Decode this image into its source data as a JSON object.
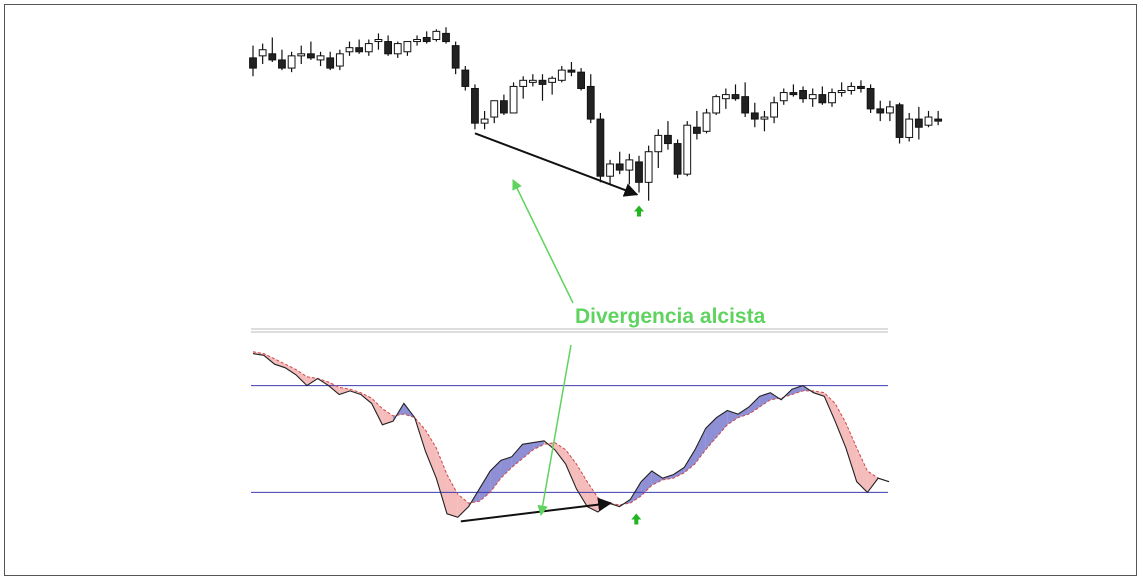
{
  "annotation": {
    "label": "Divergencia alcista"
  },
  "colors": {
    "bullish": "#ffffff",
    "bearish": "#222222",
    "wick": "#111111",
    "annotation_text": "#5fd35f",
    "annotation_arrow": "#5fd35f",
    "signal_arrow": "#22b422",
    "divergence_line": "#111111",
    "ref_line": "#3b3bb0",
    "oscillator_up_fill": "#6a6ac8",
    "oscillator_down_fill": "#f2a6a6",
    "oscillator_line": "#222222",
    "signal_line": "#d04848"
  },
  "chart_data": [
    {
      "type": "candlestick",
      "title": "",
      "grid": false,
      "ylim": [
        0,
        100
      ],
      "candles": [
        {
          "o": 78,
          "h": 84,
          "l": 69,
          "c": 73
        },
        {
          "o": 79,
          "h": 85,
          "l": 75,
          "c": 82
        },
        {
          "o": 80,
          "h": 88,
          "l": 76,
          "c": 77
        },
        {
          "o": 77,
          "h": 82,
          "l": 72,
          "c": 73
        },
        {
          "o": 73,
          "h": 81,
          "l": 71,
          "c": 79
        },
        {
          "o": 79,
          "h": 84,
          "l": 75,
          "c": 80
        },
        {
          "o": 80,
          "h": 86,
          "l": 77,
          "c": 78
        },
        {
          "o": 77,
          "h": 81,
          "l": 74,
          "c": 79
        },
        {
          "o": 78,
          "h": 81,
          "l": 72,
          "c": 73
        },
        {
          "o": 74,
          "h": 82,
          "l": 72,
          "c": 80
        },
        {
          "o": 81,
          "h": 86,
          "l": 79,
          "c": 83
        },
        {
          "o": 83,
          "h": 87,
          "l": 80,
          "c": 81
        },
        {
          "o": 81,
          "h": 87,
          "l": 79,
          "c": 85
        },
        {
          "o": 86,
          "h": 90,
          "l": 82,
          "c": 87
        },
        {
          "o": 86,
          "h": 89,
          "l": 79,
          "c": 80
        },
        {
          "o": 80,
          "h": 86,
          "l": 78,
          "c": 85
        },
        {
          "o": 81,
          "h": 86,
          "l": 79,
          "c": 86
        },
        {
          "o": 86,
          "h": 89,
          "l": 84,
          "c": 87
        },
        {
          "o": 88,
          "h": 91,
          "l": 85,
          "c": 86
        },
        {
          "o": 87,
          "h": 92,
          "l": 86,
          "c": 91
        },
        {
          "o": 90,
          "h": 93,
          "l": 85,
          "c": 86
        },
        {
          "o": 84,
          "h": 86,
          "l": 70,
          "c": 73
        },
        {
          "o": 72,
          "h": 74,
          "l": 62,
          "c": 64
        },
        {
          "o": 63,
          "h": 65,
          "l": 43,
          "c": 46
        },
        {
          "o": 46,
          "h": 52,
          "l": 43,
          "c": 48
        },
        {
          "o": 49,
          "h": 57,
          "l": 46,
          "c": 57
        },
        {
          "o": 57,
          "h": 60,
          "l": 50,
          "c": 51
        },
        {
          "o": 51,
          "h": 66,
          "l": 51,
          "c": 64
        },
        {
          "o": 64,
          "h": 69,
          "l": 58,
          "c": 67
        },
        {
          "o": 66,
          "h": 70,
          "l": 64,
          "c": 67
        },
        {
          "o": 67,
          "h": 70,
          "l": 57,
          "c": 65
        },
        {
          "o": 66,
          "h": 69,
          "l": 60,
          "c": 68
        },
        {
          "o": 67,
          "h": 74,
          "l": 66,
          "c": 72
        },
        {
          "o": 72,
          "h": 76,
          "l": 69,
          "c": 71
        },
        {
          "o": 71,
          "h": 73,
          "l": 62,
          "c": 63
        },
        {
          "o": 64,
          "h": 70,
          "l": 46,
          "c": 48
        },
        {
          "o": 48,
          "h": 51,
          "l": 17,
          "c": 20
        },
        {
          "o": 20,
          "h": 28,
          "l": 16,
          "c": 26
        },
        {
          "o": 26,
          "h": 32,
          "l": 21,
          "c": 23
        },
        {
          "o": 23,
          "h": 31,
          "l": 16,
          "c": 28
        },
        {
          "o": 27,
          "h": 30,
          "l": 12,
          "c": 17
        },
        {
          "o": 17,
          "h": 35,
          "l": 8,
          "c": 32
        },
        {
          "o": 32,
          "h": 43,
          "l": 24,
          "c": 40
        },
        {
          "o": 40,
          "h": 47,
          "l": 33,
          "c": 36
        },
        {
          "o": 36,
          "h": 38,
          "l": 19,
          "c": 21
        },
        {
          "o": 21,
          "h": 47,
          "l": 20,
          "c": 45
        },
        {
          "o": 44,
          "h": 52,
          "l": 38,
          "c": 41
        },
        {
          "o": 42,
          "h": 53,
          "l": 41,
          "c": 51
        },
        {
          "o": 51,
          "h": 60,
          "l": 50,
          "c": 59
        },
        {
          "o": 58,
          "h": 63,
          "l": 53,
          "c": 60
        },
        {
          "o": 60,
          "h": 65,
          "l": 57,
          "c": 58
        },
        {
          "o": 59,
          "h": 66,
          "l": 49,
          "c": 51
        },
        {
          "o": 51,
          "h": 56,
          "l": 44,
          "c": 48
        },
        {
          "o": 48,
          "h": 52,
          "l": 42,
          "c": 49
        },
        {
          "o": 49,
          "h": 59,
          "l": 46,
          "c": 56
        },
        {
          "o": 57,
          "h": 63,
          "l": 55,
          "c": 61
        },
        {
          "o": 61,
          "h": 65,
          "l": 59,
          "c": 60
        },
        {
          "o": 62,
          "h": 64,
          "l": 56,
          "c": 58
        },
        {
          "o": 58,
          "h": 63,
          "l": 54,
          "c": 60
        },
        {
          "o": 60,
          "h": 64,
          "l": 55,
          "c": 56
        },
        {
          "o": 56,
          "h": 63,
          "l": 54,
          "c": 61
        },
        {
          "o": 61,
          "h": 66,
          "l": 59,
          "c": 62
        },
        {
          "o": 62,
          "h": 66,
          "l": 60,
          "c": 64
        },
        {
          "o": 64,
          "h": 67,
          "l": 61,
          "c": 63
        },
        {
          "o": 63,
          "h": 65,
          "l": 51,
          "c": 53
        },
        {
          "o": 53,
          "h": 57,
          "l": 47,
          "c": 51
        },
        {
          "o": 51,
          "h": 57,
          "l": 47,
          "c": 54
        },
        {
          "o": 55,
          "h": 56,
          "l": 36,
          "c": 39
        },
        {
          "o": 39,
          "h": 51,
          "l": 37,
          "c": 48
        },
        {
          "o": 48,
          "h": 54,
          "l": 38,
          "c": 44
        },
        {
          "o": 45,
          "h": 52,
          "l": 44,
          "c": 49
        },
        {
          "o": 48,
          "h": 52,
          "l": 45,
          "c": 47
        }
      ],
      "marks": {
        "divergence_from": 23,
        "divergence_to": 40,
        "signal_at": 40
      }
    },
    {
      "type": "area",
      "title": "",
      "grid": false,
      "ylim": [
        0,
        100
      ],
      "reference_lines": [
        80,
        20
      ],
      "series": [
        {
          "values": [
            98,
            97,
            92,
            90,
            86,
            80,
            84,
            80,
            75,
            77,
            75,
            70,
            58,
            60,
            70,
            62,
            43,
            28,
            8,
            6,
            12,
            22,
            32,
            38,
            40,
            47,
            48,
            49,
            44,
            36,
            22,
            12,
            9,
            14,
            12,
            16,
            26,
            32,
            28,
            30,
            34,
            44,
            56,
            62,
            66,
            64,
            68,
            74,
            76,
            72,
            78,
            80,
            76,
            74,
            60,
            45,
            26,
            20,
            28,
            26
          ]
        },
        {
          "values": [
            99,
            98,
            95,
            92,
            89,
            85,
            84,
            82,
            79,
            78,
            76,
            73,
            67,
            63,
            64,
            62,
            55,
            45,
            30,
            19,
            14,
            15,
            20,
            28,
            34,
            39,
            44,
            47,
            48,
            44,
            36,
            26,
            17,
            14,
            13,
            14,
            18,
            24,
            27,
            28,
            31,
            36,
            44,
            51,
            58,
            62,
            64,
            68,
            72,
            73,
            75,
            77,
            77,
            76,
            70,
            59,
            45,
            32,
            28,
            26
          ]
        }
      ],
      "marks": {
        "divergence_from": 19,
        "divergence_to": 33,
        "signal_at": 35
      }
    }
  ]
}
